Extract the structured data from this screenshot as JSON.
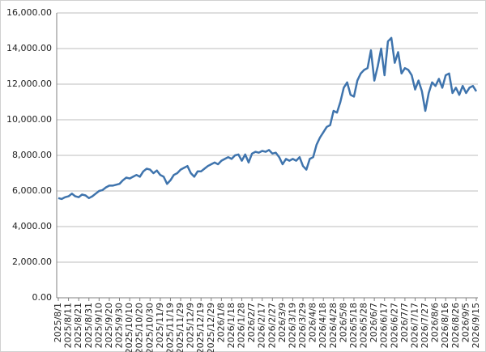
{
  "chart_data": {
    "type": "line",
    "categories": [
      "2025/8/1",
      null,
      null,
      "2025/8/11",
      null,
      null,
      "2025/8/21",
      null,
      null,
      "2025/8/31",
      null,
      null,
      "2025/9/10",
      null,
      null,
      "2025/9/20",
      null,
      null,
      "2025/9/30",
      null,
      null,
      "2025/10/10",
      null,
      null,
      "2025/10/20",
      null,
      null,
      "2025/10/30",
      null,
      null,
      "2025/11/9",
      null,
      null,
      "2025/11/19",
      null,
      null,
      "2025/11/29",
      null,
      null,
      "2025/12/9",
      null,
      null,
      "2025/12/19",
      null,
      null,
      "2025/12/29",
      null,
      null,
      "2026/1/8",
      null,
      null,
      "2026/1/18",
      null,
      null,
      "2026/1/28",
      null,
      null,
      "2026/2/7",
      null,
      null,
      "2026/2/17",
      null,
      null,
      "2026/2/27",
      null,
      null,
      "2026/3/9",
      null,
      null,
      "2026/3/19",
      null,
      null,
      "2026/3/29",
      null,
      null,
      "2026/4/8",
      null,
      null,
      "2026/4/18",
      null,
      null,
      "2026/4/28",
      null,
      null,
      "2026/5/8",
      null,
      null,
      "2026/5/18",
      null,
      null,
      "2026/5/28",
      null,
      null,
      "2026/6/7",
      null,
      null,
      "2026/6/17",
      null,
      null,
      "2026/6/27",
      null,
      null,
      "2026/7/7",
      null,
      null,
      "2026/7/17",
      null,
      null,
      "2026/7/27",
      null,
      null,
      "2026/8/6",
      null,
      null,
      "2026/8/16",
      null,
      null,
      "2026/8/26",
      null,
      null,
      "2026/9/5",
      null,
      null,
      "2026/9/15"
    ],
    "series": [
      {
        "color": "#3f74ad",
        "values": [
          5600,
          5550,
          5650,
          5700,
          5850,
          5700,
          5650,
          5800,
          5750,
          5600,
          5700,
          5850,
          6000,
          6050,
          6200,
          6300,
          6300,
          6350,
          6400,
          6600,
          6750,
          6700,
          6800,
          6900,
          6800,
          7100,
          7250,
          7200,
          7000,
          7150,
          6900,
          6800,
          6400,
          6600,
          6900,
          7000,
          7200,
          7300,
          7400,
          7000,
          6800,
          7100,
          7100,
          7250,
          7400,
          7500,
          7600,
          7500,
          7700,
          7800,
          7900,
          7800,
          8000,
          8050,
          7700,
          8050,
          7600,
          8100,
          8200,
          8150,
          8250,
          8200,
          8300,
          8100,
          8150,
          7900,
          7500,
          7800,
          7700,
          7800,
          7700,
          7900,
          7400,
          7200,
          7800,
          7900,
          8600,
          9000,
          9300,
          9600,
          9700,
          10500,
          10400,
          11000,
          11800,
          12100,
          11400,
          11300,
          12200,
          12600,
          12800,
          12900,
          13900,
          12200,
          13000,
          14000,
          12500,
          14400,
          14600,
          13200,
          13800,
          12600,
          12900,
          12800,
          12500,
          11700,
          12200,
          11600,
          10500,
          11500,
          12100,
          11900,
          12300,
          11800,
          12500,
          12600,
          11500,
          11800,
          11400,
          11900,
          11500,
          11800,
          11900,
          11600
        ]
      }
    ],
    "ylim": [
      0,
      16000
    ],
    "yticks": [
      {
        "value": 0,
        "label": "0.00"
      },
      {
        "value": 2000,
        "label": "2,000.00"
      },
      {
        "value": 4000,
        "label": "4,000.00"
      },
      {
        "value": 6000,
        "label": "6,000.00"
      },
      {
        "value": 8000,
        "label": "8,000.00"
      },
      {
        "value": 10000,
        "label": "10,000.00"
      },
      {
        "value": 12000,
        "label": "12,000.00"
      },
      {
        "value": 14000,
        "label": "14,000.00"
      },
      {
        "value": 16000,
        "label": "16,000.00"
      }
    ],
    "grid": true
  }
}
